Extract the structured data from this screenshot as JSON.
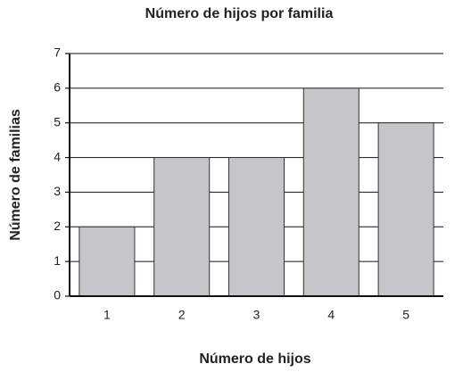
{
  "chart_data": {
    "type": "bar",
    "title": "Número de hijos por familia",
    "x_label": "Número de hijos",
    "y_label": "Número de familias",
    "categories": [
      "1",
      "2",
      "3",
      "4",
      "5"
    ],
    "values": [
      2,
      4,
      4,
      6,
      5
    ],
    "color": "#c6c6ca",
    "ylim": [
      0,
      7
    ],
    "yticks": [
      0,
      1,
      2,
      3,
      4,
      5,
      6,
      7
    ],
    "grid": true
  }
}
